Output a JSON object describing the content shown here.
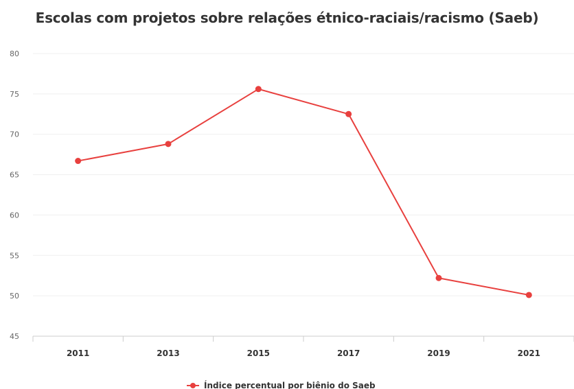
{
  "chart_data": {
    "type": "line",
    "title": "Escolas com projetos sobre relações étnico-raciais/racismo (Saeb)",
    "xlabel": "",
    "ylabel": "",
    "categories": [
      "2011",
      "2013",
      "2015",
      "2017",
      "2019",
      "2021"
    ],
    "series": [
      {
        "name": "Índice percentual por biênio do Saeb",
        "values": [
          66.7,
          68.8,
          75.6,
          72.5,
          52.2,
          50.1
        ],
        "color": "#e8403e"
      }
    ],
    "yticks": [
      "80",
      "75",
      "70",
      "65",
      "60",
      "55",
      "50",
      "45"
    ],
    "ylim": [
      45,
      80
    ],
    "grid": true,
    "legend": "bottom-center"
  }
}
